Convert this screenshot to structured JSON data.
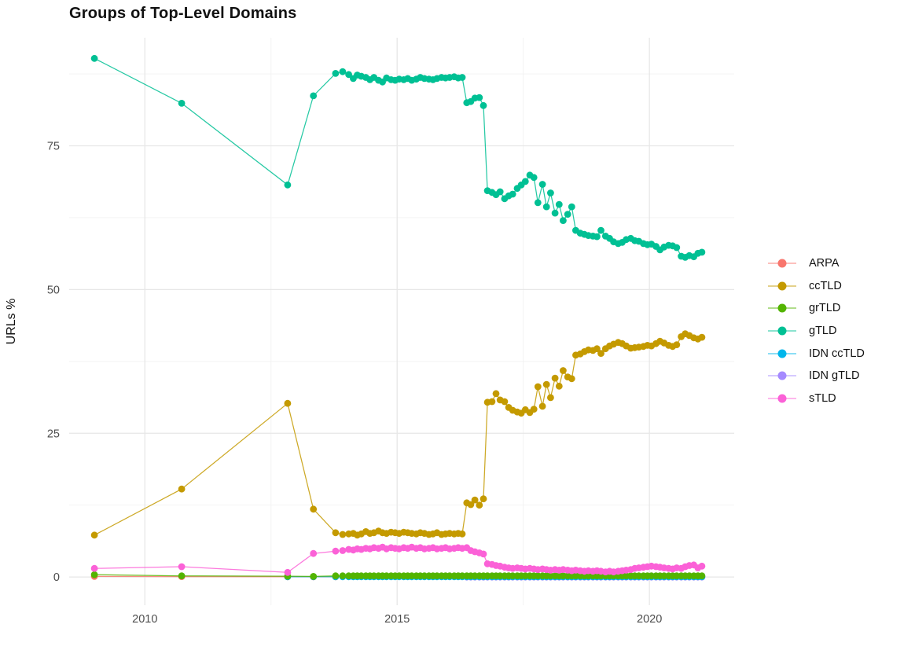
{
  "chart_data": {
    "type": "line",
    "title": "Groups of Top-Level Domains",
    "xlabel": "",
    "ylabel": "URLs %",
    "x_range": [
      2008.5,
      2021.68
    ],
    "y_range": [
      -4.9,
      93.8
    ],
    "x_ticks_major": [
      2010,
      2015,
      2020
    ],
    "x_ticks_minor": [
      2012.5,
      2017.5
    ],
    "y_ticks_major": [
      0,
      25,
      50,
      75
    ],
    "y_ticks_minor": [
      12.5,
      37.5,
      62.5,
      87.5
    ],
    "grid": true,
    "legend_position": "right",
    "legend_order": [
      "ARPA",
      "ccTLD",
      "grTLD",
      "gTLD",
      "IDN ccTLD",
      "IDN gTLD",
      "sTLD"
    ],
    "x_early": [
      2009.0,
      2010.73,
      2012.83,
      2013.34
    ],
    "x_dense": [
      2013.78,
      2013.92,
      2014.04,
      2014.13,
      2014.21,
      2014.29,
      2014.38,
      2014.46,
      2014.54,
      2014.63,
      2014.71,
      2014.79,
      2014.88,
      2014.96,
      2015.04,
      2015.13,
      2015.21,
      2015.29,
      2015.38,
      2015.46,
      2015.54,
      2015.63,
      2015.71,
      2015.79,
      2015.88,
      2015.96,
      2016.04,
      2016.13,
      2016.21,
      2016.29,
      2016.38,
      2016.46,
      2016.54,
      2016.63,
      2016.71,
      2016.79,
      2016.88,
      2016.96,
      2017.04,
      2017.13,
      2017.21,
      2017.29,
      2017.38,
      2017.46,
      2017.54,
      2017.63,
      2017.71,
      2017.79,
      2017.88,
      2017.96,
      2018.04,
      2018.13,
      2018.21,
      2018.29,
      2018.38,
      2018.46,
      2018.54,
      2018.63,
      2018.71,
      2018.79,
      2018.88,
      2018.96,
      2019.04,
      2019.13,
      2019.21,
      2019.29,
      2019.38,
      2019.46,
      2019.54,
      2019.63,
      2019.71,
      2019.79,
      2019.88,
      2019.96,
      2020.04,
      2020.13,
      2020.21,
      2020.29,
      2020.38,
      2020.46,
      2020.54,
      2020.63,
      2020.71,
      2020.79,
      2020.88,
      2020.96,
      2021.04
    ],
    "series": [
      {
        "name": "ARPA",
        "color": "#F8766D",
        "points": [
          [
            2009.0,
            0.1
          ],
          [
            2010.73,
            0.07
          ],
          [
            2012.83,
            0.05
          ],
          [
            2013.34,
            0.04
          ],
          [
            2013.78,
            0.04
          ]
        ]
      },
      {
        "name": "IDN gTLD",
        "color": "#A58AFF",
        "const": 0.0,
        "x_from": 2016.38
      },
      {
        "name": "IDN ccTLD",
        "color": "#00B6EB",
        "const": 0.05,
        "x_from": 2012.83
      },
      {
        "name": "grTLD",
        "color": "#53B400",
        "early": [
          0.4,
          0.2,
          0.15,
          0.1
        ],
        "const": 0.2
      },
      {
        "name": "sTLD",
        "color": "#FB61D7",
        "early": [
          1.5,
          1.8,
          0.8,
          4.1
        ],
        "dense": [
          4.5,
          4.6,
          4.8,
          4.7,
          4.9,
          4.8,
          5.0,
          4.9,
          5.1,
          5.0,
          5.2,
          4.9,
          5.1,
          5.0,
          4.9,
          5.1,
          5.0,
          5.2,
          5.0,
          5.1,
          4.9,
          5.0,
          5.1,
          4.9,
          5.0,
          5.1,
          4.9,
          5.0,
          5.1,
          5.0,
          5.1,
          4.6,
          4.4,
          4.2,
          4.0,
          2.3,
          2.2,
          2.0,
          1.9,
          1.7,
          1.6,
          1.5,
          1.6,
          1.5,
          1.4,
          1.5,
          1.4,
          1.3,
          1.4,
          1.3,
          1.2,
          1.3,
          1.2,
          1.3,
          1.2,
          1.1,
          1.2,
          1.1,
          1.0,
          1.1,
          1.0,
          1.1,
          1.0,
          0.9,
          1.0,
          0.9,
          1.0,
          1.1,
          1.2,
          1.3,
          1.5,
          1.6,
          1.7,
          1.8,
          1.9,
          1.8,
          1.7,
          1.6,
          1.5,
          1.4,
          1.6,
          1.5,
          1.8,
          2.0,
          2.1,
          1.6,
          1.9
        ]
      },
      {
        "name": "ccTLD",
        "color": "#C49A00",
        "early": [
          7.3,
          15.3,
          30.2,
          11.8
        ],
        "dense": [
          7.7,
          7.4,
          7.5,
          7.6,
          7.3,
          7.5,
          7.9,
          7.6,
          7.7,
          8.0,
          7.7,
          7.6,
          7.8,
          7.7,
          7.6,
          7.8,
          7.7,
          7.6,
          7.5,
          7.7,
          7.6,
          7.4,
          7.5,
          7.7,
          7.4,
          7.5,
          7.6,
          7.5,
          7.6,
          7.5,
          12.9,
          12.6,
          13.4,
          12.5,
          13.6,
          30.4,
          30.5,
          31.9,
          30.8,
          30.5,
          29.5,
          29.0,
          28.7,
          28.5,
          29.1,
          28.6,
          29.2,
          33.1,
          29.7,
          33.5,
          31.2,
          34.6,
          33.2,
          35.9,
          34.8,
          34.5,
          38.6,
          38.8,
          39.2,
          39.5,
          39.4,
          39.7,
          38.9,
          39.7,
          40.2,
          40.5,
          40.8,
          40.6,
          40.2,
          39.8,
          39.9,
          40.0,
          40.1,
          40.3,
          40.2,
          40.6,
          41.0,
          40.7,
          40.3,
          40.1,
          40.4,
          41.8,
          42.3,
          42.0,
          41.6,
          41.4,
          41.7
        ]
      },
      {
        "name": "gTLD",
        "color": "#00C094",
        "early": [
          90.2,
          82.4,
          68.2,
          83.7
        ],
        "dense": [
          87.6,
          87.9,
          87.4,
          86.7,
          87.3,
          87.1,
          86.9,
          86.5,
          86.9,
          86.4,
          86.1,
          86.8,
          86.5,
          86.4,
          86.6,
          86.5,
          86.7,
          86.4,
          86.6,
          86.9,
          86.7,
          86.6,
          86.5,
          86.7,
          86.9,
          86.8,
          86.9,
          87.0,
          86.8,
          86.9,
          82.5,
          82.7,
          83.3,
          83.4,
          82.0,
          67.2,
          66.9,
          66.5,
          67.0,
          65.8,
          66.3,
          66.6,
          67.6,
          68.2,
          68.8,
          69.9,
          69.5,
          65.1,
          68.3,
          64.4,
          66.8,
          63.3,
          64.8,
          62.0,
          63.1,
          64.4,
          60.3,
          59.8,
          59.6,
          59.4,
          59.3,
          59.2,
          60.3,
          59.3,
          58.9,
          58.3,
          58.0,
          58.2,
          58.7,
          58.9,
          58.5,
          58.4,
          58.0,
          57.8,
          57.9,
          57.5,
          56.9,
          57.4,
          57.7,
          57.6,
          57.3,
          55.8,
          55.6,
          55.9,
          55.7,
          56.3,
          56.5
        ]
      }
    ],
    "style": {
      "grid_major_color": "#e7e7e7",
      "grid_minor_color": "#f2f2f2",
      "tick_label_color": "#4d4d4d",
      "title_color": "#111111",
      "background": "#ffffff"
    }
  }
}
